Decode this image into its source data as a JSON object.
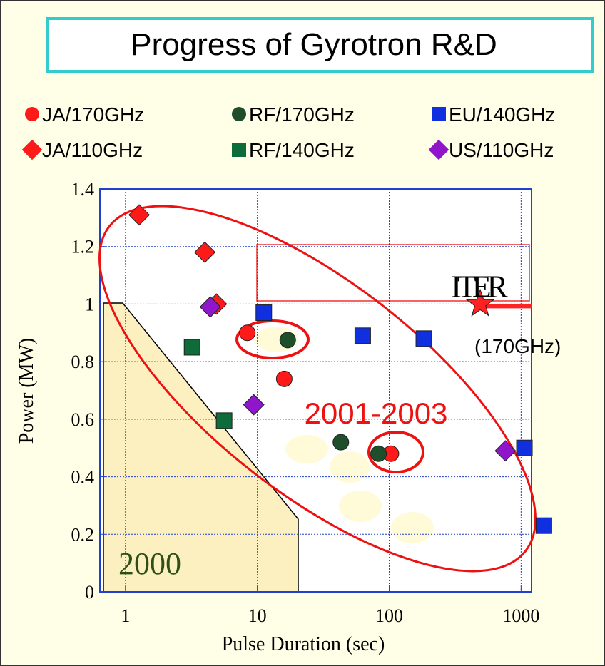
{
  "chart_data": {
    "type": "scatter",
    "title": "Progress of Gyrotron R&D",
    "xlabel": "Pulse Duration (sec)",
    "ylabel": "Power (MW)",
    "xscale": "log",
    "xlim": [
      0.64,
      1200
    ],
    "xticks": [
      1,
      10,
      100,
      1000
    ],
    "ylim": [
      0,
      1.4
    ],
    "yticks": [
      0,
      0.2,
      0.4,
      0.6,
      0.8,
      1,
      1.2,
      1.4
    ],
    "grid": true,
    "series": [
      {
        "name": "JA/170GHz",
        "color": "#ff1a1a",
        "marker": "circle",
        "x": [
          8.4,
          16,
          103
        ],
        "values": [
          0.9,
          0.74,
          0.48
        ]
      },
      {
        "name": "RF/170GHz",
        "color": "#1f4f2a",
        "marker": "circle",
        "x": [
          17,
          43,
          83
        ],
        "values": [
          0.875,
          0.52,
          0.48
        ]
      },
      {
        "name": "EU/140GHz",
        "color": "#1030e0",
        "marker": "square",
        "x": [
          11.2,
          63,
          183,
          1060,
          1490
        ],
        "values": [
          0.97,
          0.89,
          0.88,
          0.5,
          0.23
        ]
      },
      {
        "name": "JA/110GHz",
        "color": "#ff1a1a",
        "marker": "diamond",
        "x": [
          1.27,
          4.0,
          4.9
        ],
        "values": [
          1.31,
          1.18,
          1.0
        ]
      },
      {
        "name": "RF/140GHz",
        "color": "#0e6b3a",
        "marker": "square",
        "x": [
          3.2,
          5.6
        ],
        "values": [
          0.85,
          0.595
        ]
      },
      {
        "name": "US/110GHz",
        "color": "#9016cc",
        "marker": "diamond",
        "x": [
          4.4,
          9.4,
          760
        ],
        "values": [
          0.99,
          0.65,
          0.49
        ]
      }
    ],
    "target": {
      "label": "ITER",
      "sublabel": "(170GHz)",
      "x": 490,
      "y": 1.0
    },
    "annotations": [
      "2001-2003",
      "2000"
    ]
  }
}
